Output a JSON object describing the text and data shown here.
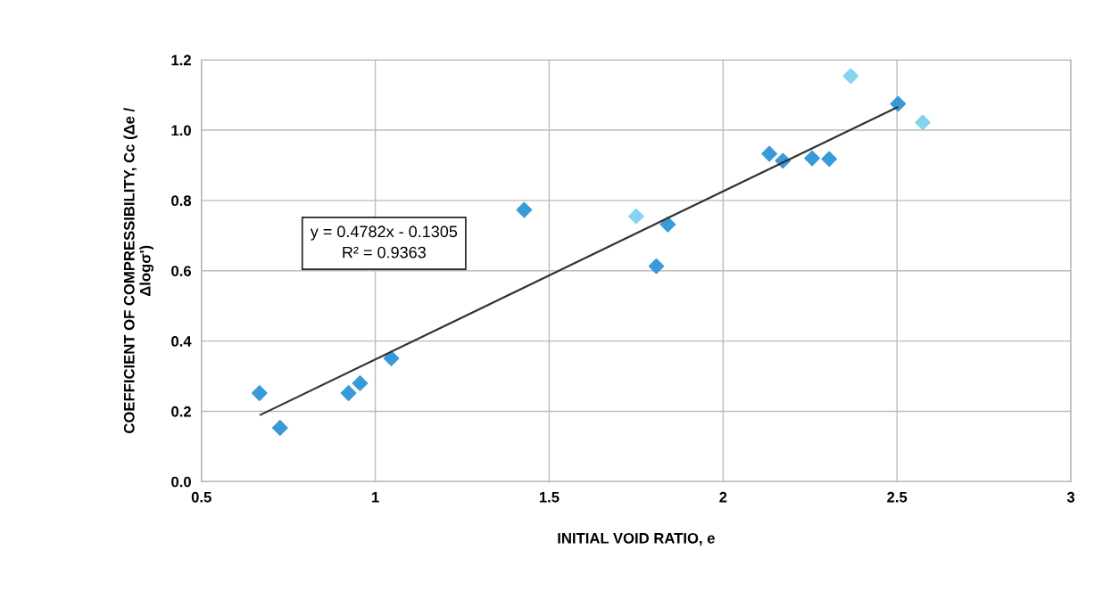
{
  "chart_data": {
    "type": "scatter",
    "xlabel": "INITIAL VOID RATIO, e",
    "ylabel": "COEFFICIENT OF COMPRESSIBILITY, Cc (Δe /\nΔlogσ')",
    "xlim": [
      0.5,
      3
    ],
    "ylim": [
      0,
      1.2
    ],
    "xticks": [
      0.5,
      1,
      1.5,
      2,
      2.5,
      3
    ],
    "yticks": [
      {
        "value": 0,
        "label": "0.0"
      },
      {
        "value": 0.2,
        "label": "0.2"
      },
      {
        "value": 0.4,
        "label": "0.4"
      },
      {
        "value": 0.6,
        "label": "0.6"
      },
      {
        "value": 0.8,
        "label": "0.8"
      },
      {
        "value": 1.0,
        "label": "1.0"
      },
      {
        "value": 1.2,
        "label": "1.2"
      }
    ],
    "grid": true,
    "marker": "diamond",
    "series": [
      {
        "color": "#3a9ad9",
        "x": [
          0.667,
          0.726,
          0.923,
          0.956,
          1.046,
          1.428,
          1.808,
          1.841,
          2.133,
          2.172,
          2.256,
          2.305,
          2.503
        ],
        "values": [
          0.252,
          0.153,
          0.252,
          0.28,
          0.351,
          0.773,
          0.613,
          0.732,
          0.933,
          0.913,
          0.92,
          0.918,
          1.075
        ]
      },
      {
        "color": "#86d3f0",
        "x": [
          1.75,
          2.367,
          2.574
        ],
        "values": [
          0.755,
          1.154,
          1.022
        ]
      },
      {
        "type": "line",
        "color": "#333333",
        "marker": "none",
        "x": [
          0.67,
          2.5
        ],
        "values": [
          0.19,
          1.065
        ]
      }
    ],
    "annotations": [
      "y = 0.4782x - 0.1305\nR² = 0.9363"
    ]
  }
}
